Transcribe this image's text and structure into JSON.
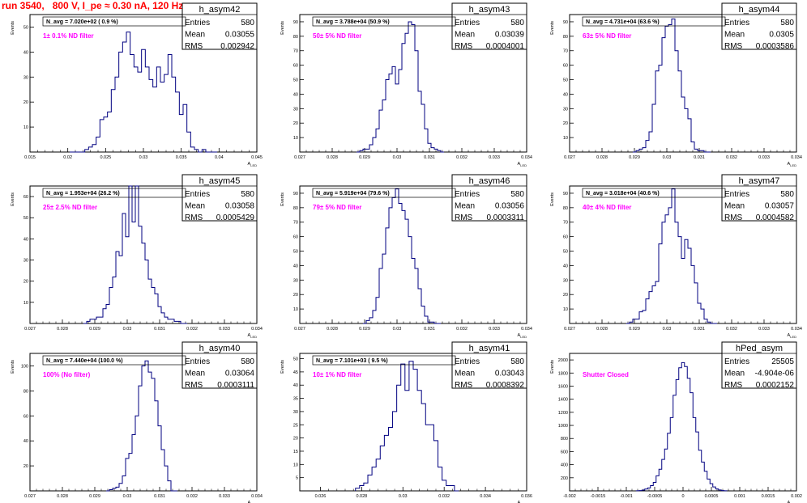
{
  "page": {
    "title": "run 3540,   800 V, I_pe ≈ 0.30 nA, 120 Hz"
  },
  "style": {
    "line_color": "#000080",
    "annotation_color": "#ff00ff",
    "title_color": "#ff0000",
    "frame_color": "#000000"
  },
  "chart_data": [
    {
      "type": "bar",
      "name": "h_asym42",
      "stats": {
        "entries_label": "Entries",
        "entries": "580",
        "mean_label": "Mean",
        "mean": "0.03055",
        "rms_label": "RMS",
        "rms": "0.002942"
      },
      "navg": "N_avg = 7.020e+02 ( 0.9 %)",
      "filter": "1± 0.1% ND filter",
      "ylabel": "Events",
      "xlabel": "A_{LED}",
      "xlim": [
        0.015,
        0.045
      ],
      "ylim": [
        0,
        55
      ],
      "xticks": [
        0.015,
        0.02,
        0.025,
        0.03,
        0.035,
        0.04,
        0.045
      ],
      "xtick_labels": [
        "0.015",
        "0.02",
        "0.025",
        "0.03",
        "0.035",
        "0.04",
        "0.045"
      ],
      "yticks": [
        10,
        20,
        30,
        40,
        50
      ],
      "x": [
        0.0205,
        0.021,
        0.0215,
        0.022,
        0.0225,
        0.023,
        0.0235,
        0.024,
        0.0245,
        0.025,
        0.0255,
        0.026,
        0.0265,
        0.027,
        0.0275,
        0.028,
        0.0285,
        0.029,
        0.0295,
        0.03,
        0.0305,
        0.031,
        0.0315,
        0.032,
        0.0325,
        0.033,
        0.0335,
        0.034,
        0.0345,
        0.035,
        0.0355,
        0.036,
        0.0365,
        0.037,
        0.0375,
        0.038,
        0.0385,
        0.039,
        0.0395
      ],
      "values": [
        0,
        0,
        0,
        0,
        1,
        2,
        3,
        6,
        13,
        14,
        16,
        25,
        30,
        40,
        44,
        48,
        39,
        34,
        32,
        41,
        34,
        29,
        26,
        34,
        28,
        31,
        39,
        30,
        24,
        15,
        19,
        8,
        2,
        1,
        0,
        1,
        0,
        0,
        0
      ]
    },
    {
      "type": "bar",
      "name": "h_asym43",
      "stats": {
        "entries_label": "Entries",
        "entries": "580",
        "mean_label": "Mean",
        "mean": "0.03039",
        "rms_label": "RMS",
        "rms": "0.0004001"
      },
      "navg": "N_avg = 3.788e+04 (50.9 %)",
      "filter": "50± 5% ND filter",
      "ylabel": "Events",
      "xlabel": "A_{LED}",
      "xlim": [
        0.027,
        0.034
      ],
      "ylim": [
        0,
        95
      ],
      "xticks": [
        0.027,
        0.028,
        0.029,
        0.03,
        0.031,
        0.032,
        0.033,
        0.034
      ],
      "xtick_labels": [
        "0.027",
        "0.028",
        "0.029",
        "0.03",
        "0.031",
        "0.032",
        "0.033",
        "0.034"
      ],
      "yticks": [
        10,
        20,
        30,
        40,
        50,
        60,
        70,
        80,
        90
      ],
      "x": [
        0.0288,
        0.0289,
        0.029,
        0.0291,
        0.0292,
        0.0293,
        0.0294,
        0.0295,
        0.0296,
        0.0297,
        0.0298,
        0.0299,
        0.03,
        0.0301,
        0.0302,
        0.0303,
        0.0304,
        0.0305,
        0.0306,
        0.0307,
        0.0308,
        0.0309,
        0.031,
        0.0311,
        0.0312,
        0.0313,
        0.0314
      ],
      "values": [
        0,
        1,
        2,
        2,
        5,
        10,
        16,
        29,
        36,
        50,
        54,
        59,
        47,
        57,
        75,
        82,
        90,
        88,
        70,
        42,
        33,
        16,
        6,
        3,
        2,
        1,
        0
      ]
    },
    {
      "type": "bar",
      "name": "h_asym44",
      "stats": {
        "entries_label": "Entries",
        "entries": "580",
        "mean_label": "Mean",
        "mean": "0.0305",
        "rms_label": "RMS",
        "rms": "0.0003586"
      },
      "navg": "N_avg = 4.731e+04 (63.6 %)",
      "filter": "63± 5% ND filter",
      "ylabel": "Events",
      "xlabel": "A_{LED}",
      "xlim": [
        0.027,
        0.034
      ],
      "ylim": [
        0,
        95
      ],
      "xticks": [
        0.027,
        0.028,
        0.029,
        0.03,
        0.031,
        0.032,
        0.033,
        0.034
      ],
      "xtick_labels": [
        "0.027",
        "0.028",
        "0.029",
        "0.03",
        "0.031",
        "0.032",
        "0.033",
        "0.034"
      ],
      "yticks": [
        10,
        20,
        30,
        40,
        50,
        60,
        70,
        80,
        90
      ],
      "x": [
        0.029,
        0.0291,
        0.0292,
        0.0293,
        0.0294,
        0.0295,
        0.0296,
        0.0297,
        0.0298,
        0.0299,
        0.03,
        0.0301,
        0.0302,
        0.0303,
        0.0304,
        0.0305,
        0.0306,
        0.0307,
        0.0308,
        0.0309,
        0.031,
        0.0311,
        0.0312,
        0.0313
      ],
      "values": [
        0,
        1,
        2,
        3,
        8,
        14,
        33,
        56,
        60,
        79,
        87,
        88,
        92,
        70,
        56,
        38,
        30,
        23,
        7,
        2,
        1,
        1,
        0,
        0
      ]
    },
    {
      "type": "bar",
      "name": "h_asym45",
      "stats": {
        "entries_label": "Entries",
        "entries": "580",
        "mean_label": "Mean",
        "mean": "0.03058",
        "rms_label": "RMS",
        "rms": "0.0005429"
      },
      "navg": "N_avg = 1.953e+04 (26.2 %)",
      "filter": "25± 2.5% ND filter",
      "ylabel": "Events",
      "xlabel": "A_{LED}",
      "xlim": [
        0.027,
        0.034
      ],
      "ylim": [
        0,
        65
      ],
      "xticks": [
        0.027,
        0.028,
        0.029,
        0.03,
        0.031,
        0.032,
        0.033,
        0.034
      ],
      "xtick_labels": [
        "0.027",
        "0.028",
        "0.029",
        "0.03",
        "0.031",
        "0.032",
        "0.033",
        "0.034"
      ],
      "yticks": [
        10,
        20,
        30,
        40,
        50,
        60
      ],
      "x": [
        0.0287,
        0.0288,
        0.0289,
        0.029,
        0.0291,
        0.0292,
        0.0293,
        0.0294,
        0.0295,
        0.0296,
        0.0297,
        0.0298,
        0.0299,
        0.03,
        0.0301,
        0.0302,
        0.0303,
        0.0304,
        0.0305,
        0.0306,
        0.0307,
        0.0308,
        0.0309,
        0.031,
        0.0311,
        0.0312,
        0.0313,
        0.0314,
        0.0315,
        0.0316,
        0.0317,
        0.0318
      ],
      "values": [
        0,
        1,
        2,
        2,
        3,
        3,
        7,
        9,
        17,
        22,
        34,
        32,
        52,
        41,
        65,
        48,
        65,
        46,
        38,
        30,
        21,
        17,
        14,
        8,
        5,
        3,
        2,
        2,
        1,
        1,
        0,
        0
      ]
    },
    {
      "type": "bar",
      "name": "h_asym46",
      "stats": {
        "entries_label": "Entries",
        "entries": "580",
        "mean_label": "Mean",
        "mean": "0.03056",
        "rms_label": "RMS",
        "rms": "0.0003311"
      },
      "navg": "N_avg = 5.919e+04 (79.6 %)",
      "filter": "79± 5% ND filter",
      "ylabel": "Events",
      "xlabel": "A_{LED}",
      "xlim": [
        0.027,
        0.034
      ],
      "ylim": [
        0,
        95
      ],
      "xticks": [
        0.027,
        0.028,
        0.029,
        0.03,
        0.031,
        0.032,
        0.033,
        0.034
      ],
      "xtick_labels": [
        "0.027",
        "0.028",
        "0.029",
        "0.03",
        "0.031",
        "0.032",
        "0.033",
        "0.034"
      ],
      "yticks": [
        10,
        20,
        30,
        40,
        50,
        60,
        70,
        80,
        90
      ],
      "x": [
        0.029,
        0.0291,
        0.0292,
        0.0293,
        0.0294,
        0.0295,
        0.0296,
        0.0297,
        0.0298,
        0.0299,
        0.03,
        0.0301,
        0.0302,
        0.0303,
        0.0304,
        0.0305,
        0.0306,
        0.0307,
        0.0308,
        0.0309,
        0.031,
        0.0311,
        0.0312,
        0.0313
      ],
      "values": [
        0,
        2,
        4,
        9,
        18,
        38,
        48,
        66,
        80,
        87,
        93,
        83,
        78,
        72,
        60,
        45,
        38,
        24,
        12,
        5,
        1,
        1,
        0,
        0
      ]
    },
    {
      "type": "bar",
      "name": "h_asym47",
      "stats": {
        "entries_label": "Entries",
        "entries": "580",
        "mean_label": "Mean",
        "mean": "0.03057",
        "rms_label": "RMS",
        "rms": "0.0004582"
      },
      "navg": "N_avg = 3.018e+04 (40.6 %)",
      "filter": "40± 4% ND filter",
      "ylabel": "Events",
      "xlabel": "A_{LED}",
      "xlim": [
        0.027,
        0.034
      ],
      "ylim": [
        0,
        95
      ],
      "xticks": [
        0.027,
        0.028,
        0.029,
        0.03,
        0.031,
        0.032,
        0.033,
        0.034
      ],
      "xtick_labels": [
        "0.027",
        "0.028",
        "0.029",
        "0.03",
        "0.031",
        "0.032",
        "0.033",
        "0.034"
      ],
      "yticks": [
        10,
        20,
        30,
        40,
        50,
        60,
        70,
        80,
        90
      ],
      "x": [
        0.0288,
        0.0289,
        0.029,
        0.0291,
        0.0292,
        0.0293,
        0.0294,
        0.0295,
        0.0296,
        0.0297,
        0.0298,
        0.0299,
        0.03,
        0.0301,
        0.0302,
        0.0303,
        0.0304,
        0.0305,
        0.0306,
        0.0307,
        0.0308,
        0.0309,
        0.031,
        0.0311,
        0.0312,
        0.0313,
        0.0314,
        0.0315
      ],
      "values": [
        0,
        1,
        3,
        3,
        8,
        9,
        17,
        22,
        26,
        29,
        55,
        70,
        75,
        80,
        93,
        70,
        60,
        45,
        58,
        52,
        40,
        28,
        14,
        10,
        3,
        1,
        0,
        0
      ]
    },
    {
      "type": "bar",
      "name": "h_asym40",
      "stats": {
        "entries_label": "Entries",
        "entries": "580",
        "mean_label": "Mean",
        "mean": "0.03064",
        "rms_label": "RMS",
        "rms": "0.0003111"
      },
      "navg": "N_avg = 7.440e+04 (100.0 %)",
      "filter": "100% (No filter)",
      "ylabel": "Events",
      "xlabel": "A_{LED}",
      "xlim": [
        0.027,
        0.034
      ],
      "ylim": [
        0,
        110
      ],
      "xticks": [
        0.027,
        0.028,
        0.029,
        0.03,
        0.031,
        0.032,
        0.033,
        0.034
      ],
      "xtick_labels": [
        "0.027",
        "0.028",
        "0.029",
        "0.03",
        "0.031",
        "0.032",
        "0.033",
        "0.034"
      ],
      "yticks": [
        20,
        40,
        60,
        80,
        100
      ],
      "x": [
        0.0294,
        0.0295,
        0.0296,
        0.0297,
        0.0298,
        0.0299,
        0.03,
        0.0301,
        0.0302,
        0.0303,
        0.0304,
        0.0305,
        0.0306,
        0.0307,
        0.0308,
        0.0309,
        0.031,
        0.0311,
        0.0312,
        0.0313,
        0.0314,
        0.0315
      ],
      "values": [
        0,
        1,
        2,
        3,
        6,
        12,
        26,
        30,
        45,
        60,
        84,
        100,
        104,
        95,
        90,
        72,
        52,
        33,
        20,
        8,
        0,
        0
      ]
    },
    {
      "type": "bar",
      "name": "h_asym41",
      "stats": {
        "entries_label": "Entries",
        "entries": "580",
        "mean_label": "Mean",
        "mean": "0.03043",
        "rms_label": "RMS",
        "rms": "0.0008392"
      },
      "navg": "N_avg = 7.101e+03 ( 9.5 %)",
      "filter": "10± 1% ND filter",
      "ylabel": "Events",
      "xlabel": "A_{LED}",
      "xlim": [
        0.025,
        0.036
      ],
      "ylim": [
        0,
        52
      ],
      "xticks": [
        0.026,
        0.028,
        0.03,
        0.032,
        0.034,
        0.036
      ],
      "xtick_labels": [
        "0.026",
        "0.028",
        "0.03",
        "0.032",
        "0.034",
        "0.036"
      ],
      "yticks": [
        5,
        10,
        15,
        20,
        25,
        30,
        35,
        40,
        45,
        50
      ],
      "x": [
        0.0278,
        0.028,
        0.0282,
        0.0284,
        0.0286,
        0.0288,
        0.029,
        0.0292,
        0.0294,
        0.0296,
        0.0298,
        0.03,
        0.0302,
        0.0304,
        0.0306,
        0.0308,
        0.031,
        0.0312,
        0.0314,
        0.0316,
        0.0318,
        0.032,
        0.0322,
        0.0324,
        0.0326
      ],
      "values": [
        1,
        2,
        3,
        6,
        9,
        12,
        17,
        21,
        24,
        30,
        40,
        48,
        38,
        49,
        46,
        38,
        33,
        25,
        25,
        19,
        9,
        4,
        2,
        2,
        0
      ]
    },
    {
      "type": "bar",
      "name": "hPed_asym",
      "stats": {
        "entries_label": "Entries",
        "entries": "25505",
        "mean_label": "Mean",
        "mean": "-4.904e-06",
        "rms_label": "RMS",
        "rms": "0.0002152"
      },
      "navg": "",
      "filter": "Shutter Closed",
      "ylabel": "Events",
      "xlabel": "A_{LED}",
      "xlim": [
        -0.002,
        0.002
      ],
      "ylim": [
        0,
        2100
      ],
      "xticks": [
        -0.002,
        -0.0015,
        -0.001,
        -0.0005,
        0,
        0.0005,
        0.001,
        0.0015,
        0.002
      ],
      "xtick_labels": [
        "-0.002",
        "-0.0015",
        "-0.001",
        "-0.0005",
        "0",
        "0.0005",
        "0.001",
        "0.0015",
        "0.002"
      ],
      "yticks": [
        200,
        400,
        600,
        800,
        1000,
        1200,
        1400,
        1600,
        1800,
        2000
      ],
      "x": [
        -0.0008,
        -0.00075,
        -0.0007,
        -0.00065,
        -0.0006,
        -0.00055,
        -0.0005,
        -0.00045,
        -0.0004,
        -0.00035,
        -0.0003,
        -0.00025,
        -0.0002,
        -0.00015,
        -0.0001,
        -5e-05,
        0,
        5e-05,
        0.0001,
        0.00015,
        0.0002,
        0.00025,
        0.0003,
        0.00035,
        0.0004,
        0.00045,
        0.0005,
        0.00055,
        0.0006,
        0.00065,
        0.0007,
        0.00075
      ],
      "values": [
        2,
        5,
        12,
        28,
        45,
        80,
        130,
        230,
        330,
        480,
        640,
        880,
        1120,
        1460,
        1700,
        1880,
        1960,
        1900,
        1720,
        1500,
        1120,
        900,
        620,
        440,
        300,
        180,
        110,
        60,
        30,
        14,
        5,
        2
      ]
    }
  ]
}
